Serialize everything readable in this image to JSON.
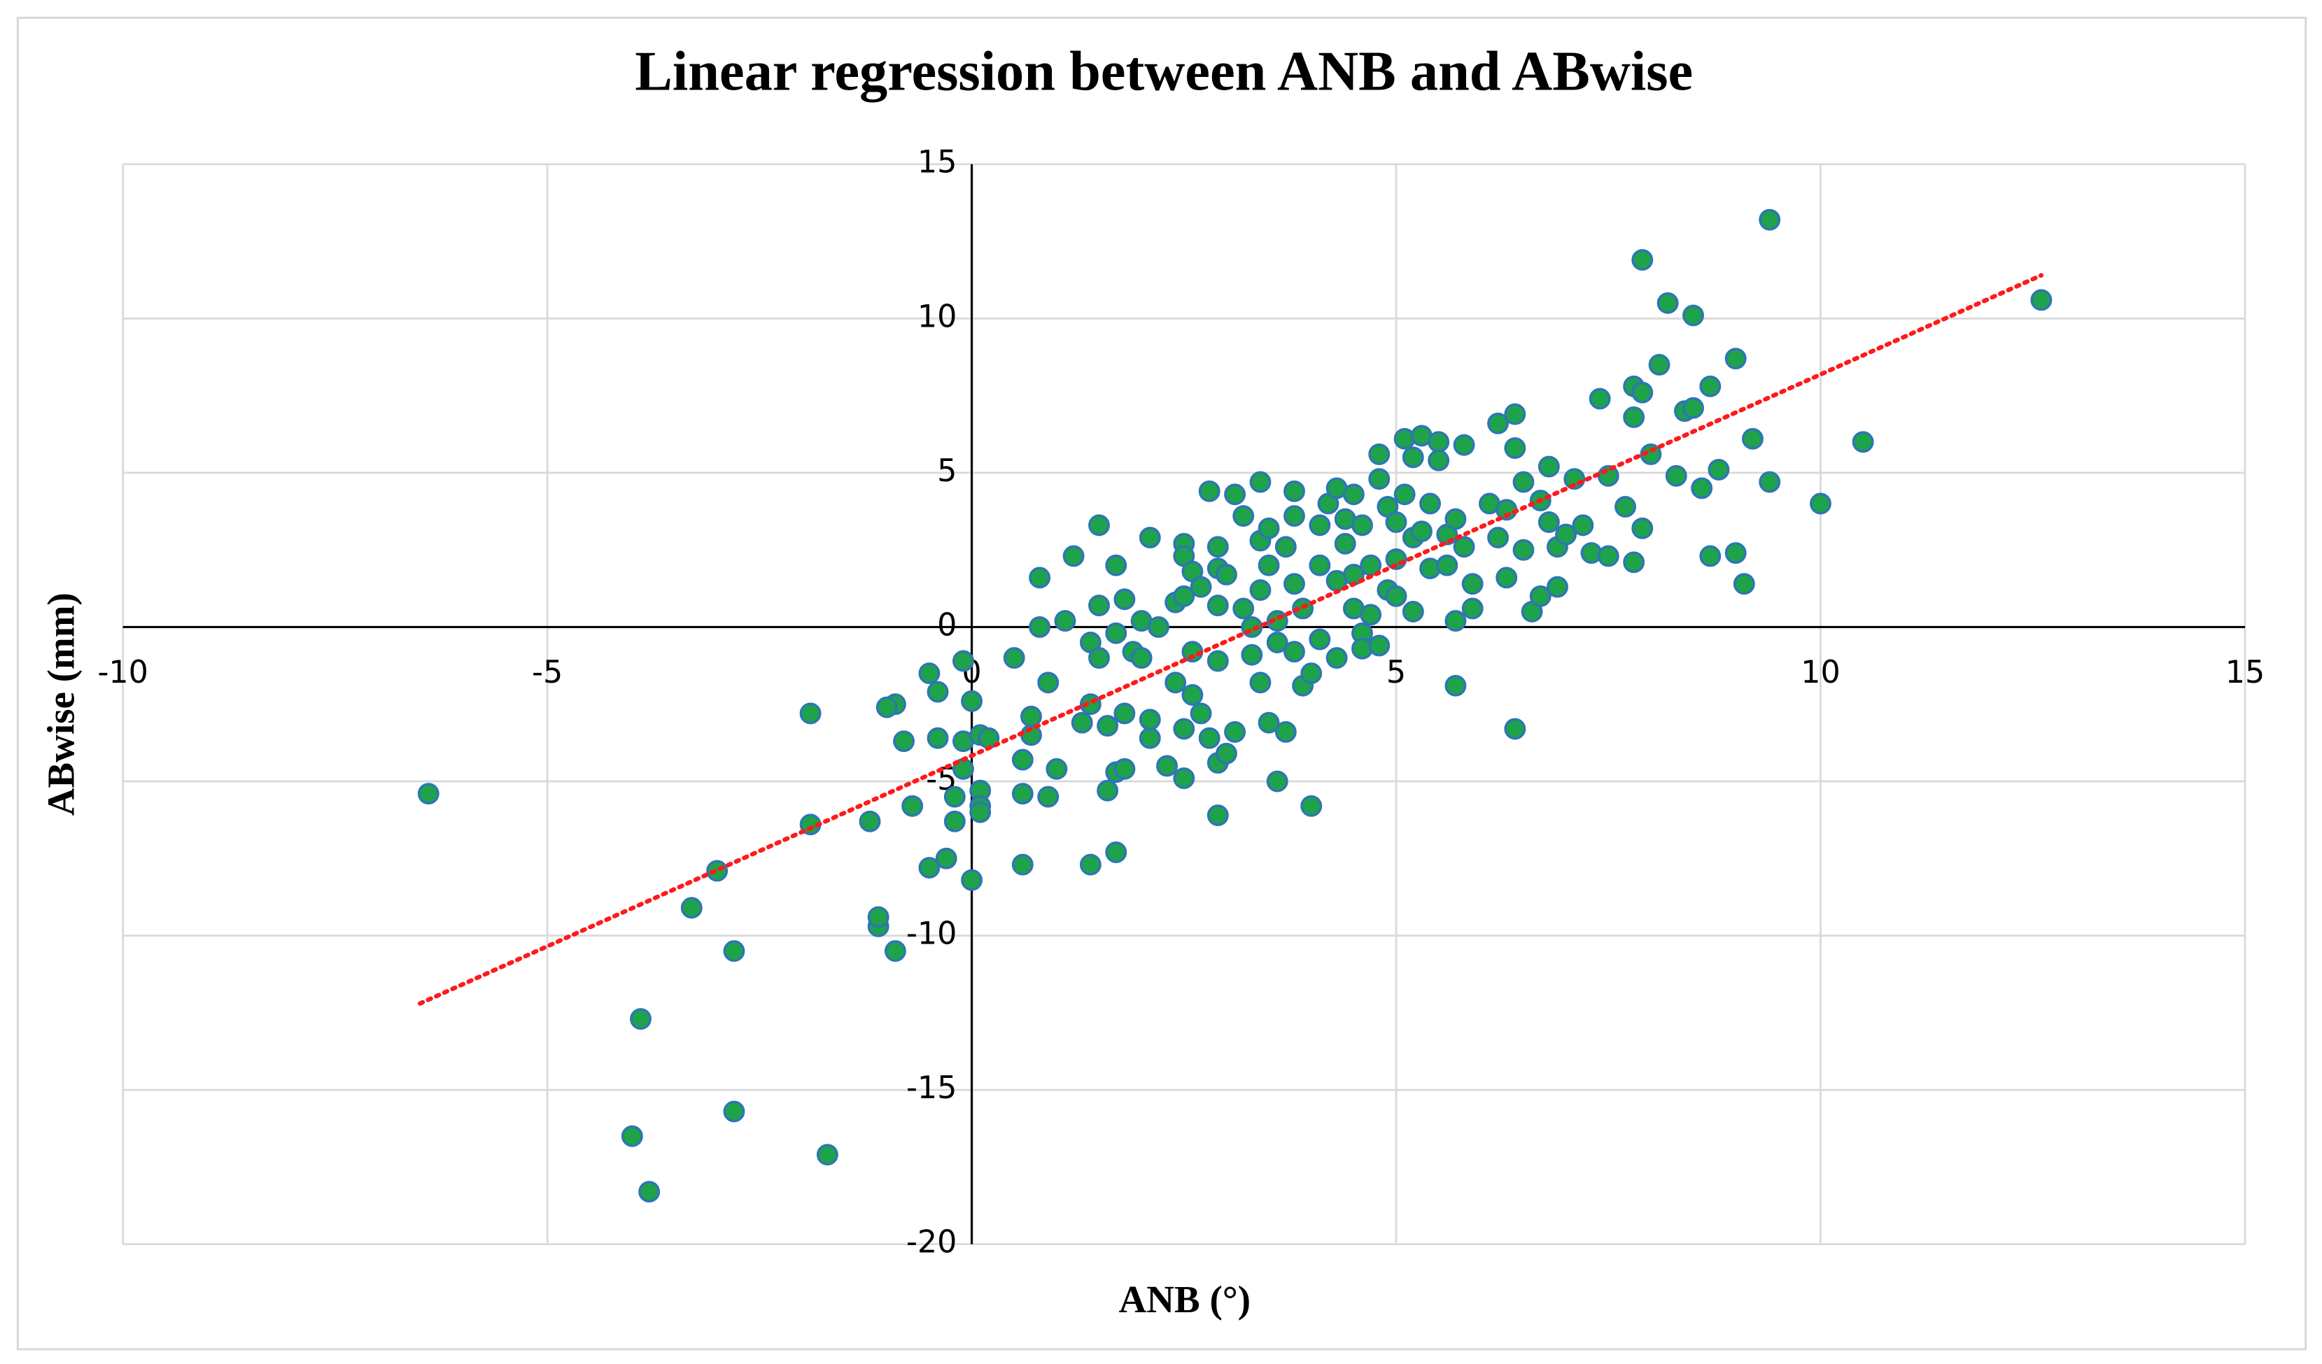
{
  "chart_data": {
    "type": "scatter",
    "title": "Linear regression between ANB and ABwise",
    "xlabel": "ANB (°)",
    "ylabel": "ABwise (mm)",
    "xlim": [
      -10,
      15
    ],
    "ylim": [
      -20,
      15
    ],
    "xticks": [
      -10,
      -5,
      0,
      5,
      10,
      15
    ],
    "yticks": [
      -20,
      -15,
      -10,
      -5,
      0,
      5,
      10,
      15
    ],
    "grid": true,
    "color": "#1ea24a",
    "edge_color": "#2e75b6",
    "x": [
      -6.4,
      -3.9,
      -4.0,
      -3.8,
      -2.8,
      -1.7,
      -3.3,
      -3.0,
      -2.8,
      -1.9,
      -1.9,
      -1.2,
      -1.1,
      -1.1,
      -0.9,
      -0.9,
      -1.0,
      -0.8,
      -0.7,
      -0.5,
      -0.5,
      -0.4,
      -0.4,
      -0.3,
      -0.2,
      -0.2,
      -0.1,
      -0.1,
      -0.1,
      0.0,
      0.0,
      0.1,
      0.1,
      0.1,
      0.1,
      0.2,
      0.5,
      0.6,
      0.6,
      0.6,
      0.7,
      0.7,
      0.8,
      0.8,
      0.9,
      0.9,
      1.0,
      1.1,
      1.2,
      1.3,
      1.4,
      1.4,
      1.4,
      1.5,
      1.5,
      1.5,
      1.6,
      1.6,
      1.7,
      1.7,
      1.7,
      1.7,
      1.8,
      1.8,
      1.8,
      1.9,
      2.0,
      2.0,
      2.1,
      2.1,
      2.1,
      2.2,
      2.3,
      2.4,
      2.4,
      2.5,
      2.5,
      2.5,
      2.5,
      2.5,
      2.6,
      2.6,
      2.6,
      2.7,
      2.7,
      2.8,
      2.8,
      2.9,
      2.9,
      2.9,
      2.9,
      2.9,
      2.9,
      3.0,
      3.0,
      3.1,
      3.1,
      3.2,
      3.2,
      3.3,
      3.3,
      3.4,
      3.4,
      3.4,
      3.4,
      3.5,
      3.5,
      3.5,
      3.6,
      3.6,
      3.6,
      3.7,
      3.7,
      3.8,
      3.8,
      3.8,
      3.8,
      3.9,
      3.9,
      4.0,
      4.0,
      4.1,
      4.1,
      4.1,
      4.2,
      4.3,
      4.3,
      4.3,
      4.4,
      4.4,
      4.5,
      4.5,
      4.5,
      4.6,
      4.6,
      4.6,
      4.7,
      4.7,
      4.8,
      4.8,
      4.8,
      4.9,
      4.9,
      5.0,
      5.0,
      5.0,
      5.1,
      5.1,
      5.2,
      5.2,
      5.2,
      5.3,
      5.3,
      5.4,
      5.4,
      5.5,
      5.5,
      5.6,
      5.6,
      5.7,
      5.7,
      5.7,
      5.8,
      5.8,
      5.9,
      5.9,
      6.1,
      6.2,
      6.2,
      6.3,
      6.3,
      6.4,
      6.4,
      6.4,
      6.5,
      6.5,
      6.6,
      6.7,
      6.7,
      6.8,
      6.8,
      6.9,
      6.9,
      7.0,
      7.1,
      7.2,
      7.3,
      7.4,
      7.5,
      7.5,
      7.7,
      7.8,
      7.8,
      7.8,
      7.9,
      7.9,
      7.9,
      8.0,
      8.1,
      8.2,
      8.3,
      8.4,
      8.5,
      8.5,
      8.6,
      8.7,
      8.7,
      8.8,
      9.0,
      9.0,
      9.1,
      9.2,
      9.4,
      9.4,
      10.0,
      10.5,
      12.6
    ],
    "y": [
      -5.4,
      -12.7,
      -16.5,
      -18.3,
      -15.7,
      -17.1,
      -9.1,
      -7.9,
      -10.5,
      -6.4,
      -2.8,
      -6.3,
      -9.7,
      -9.4,
      -10.5,
      -2.5,
      -2.6,
      -3.7,
      -5.8,
      -7.8,
      -1.5,
      -2.1,
      -3.6,
      -7.5,
      -6.3,
      -5.5,
      -1.1,
      -3.7,
      -4.6,
      -8.2,
      -2.4,
      -3.5,
      -5.3,
      -5.8,
      -6.0,
      -3.6,
      -1.0,
      -7.7,
      -5.4,
      -4.3,
      -3.5,
      -2.9,
      1.6,
      0.0,
      -5.5,
      -1.8,
      -4.6,
      0.2,
      2.3,
      -3.1,
      -0.5,
      -2.5,
      -7.7,
      3.3,
      0.7,
      -1.0,
      -3.2,
      -5.3,
      -4.7,
      -7.3,
      2.0,
      -0.2,
      0.9,
      -2.8,
      -4.6,
      -0.8,
      0.2,
      -1.0,
      2.9,
      -3.6,
      -3.0,
      0.0,
      -4.5,
      0.8,
      -1.8,
      2.7,
      2.3,
      1.0,
      -3.3,
      -4.9,
      1.8,
      -0.8,
      -2.2,
      1.3,
      -2.8,
      4.4,
      -3.6,
      2.6,
      1.9,
      0.7,
      -1.1,
      -4.4,
      -6.1,
      -4.1,
      1.7,
      4.3,
      -3.4,
      0.6,
      3.6,
      0.0,
      -0.9,
      4.7,
      2.8,
      1.2,
      -1.8,
      3.2,
      2.0,
      -3.1,
      0.2,
      -0.5,
      -5.0,
      -3.4,
      2.6,
      1.4,
      -0.8,
      3.6,
      4.4,
      -1.9,
      0.6,
      -5.8,
      -1.5,
      3.3,
      2.0,
      -0.4,
      4.0,
      1.5,
      -1.0,
      4.5,
      3.5,
      2.7,
      4.3,
      1.7,
      0.6,
      3.3,
      -0.2,
      -0.7,
      2.0,
      0.4,
      5.6,
      4.8,
      -0.6,
      3.9,
      1.2,
      3.4,
      2.2,
      1.0,
      6.1,
      4.3,
      5.5,
      2.9,
      0.5,
      6.2,
      3.1,
      4.0,
      1.9,
      6.0,
      5.4,
      3.0,
      2.0,
      -1.9,
      0.2,
      3.5,
      5.9,
      2.6,
      1.4,
      0.6,
      4.0,
      6.6,
      2.9,
      1.6,
      3.8,
      -3.3,
      6.9,
      5.8,
      4.7,
      2.5,
      0.5,
      4.1,
      1.0,
      5.2,
      3.4,
      1.3,
      2.6,
      3.0,
      4.8,
      3.3,
      2.4,
      7.4,
      2.3,
      4.9,
      3.9,
      7.8,
      6.8,
      2.1,
      11.9,
      7.6,
      3.2,
      5.6,
      8.5,
      10.5,
      4.9,
      7.0,
      7.1,
      10.1,
      4.5,
      7.8,
      2.3,
      5.1,
      8.7,
      2.4,
      1.4,
      6.1,
      4.7,
      13.2,
      4.0,
      6.0,
      10.6
    ],
    "trendline": {
      "x": [
        -6.5,
        12.6
      ],
      "y": [
        -12.2,
        11.4
      ],
      "color": "#ff1a1a"
    }
  }
}
